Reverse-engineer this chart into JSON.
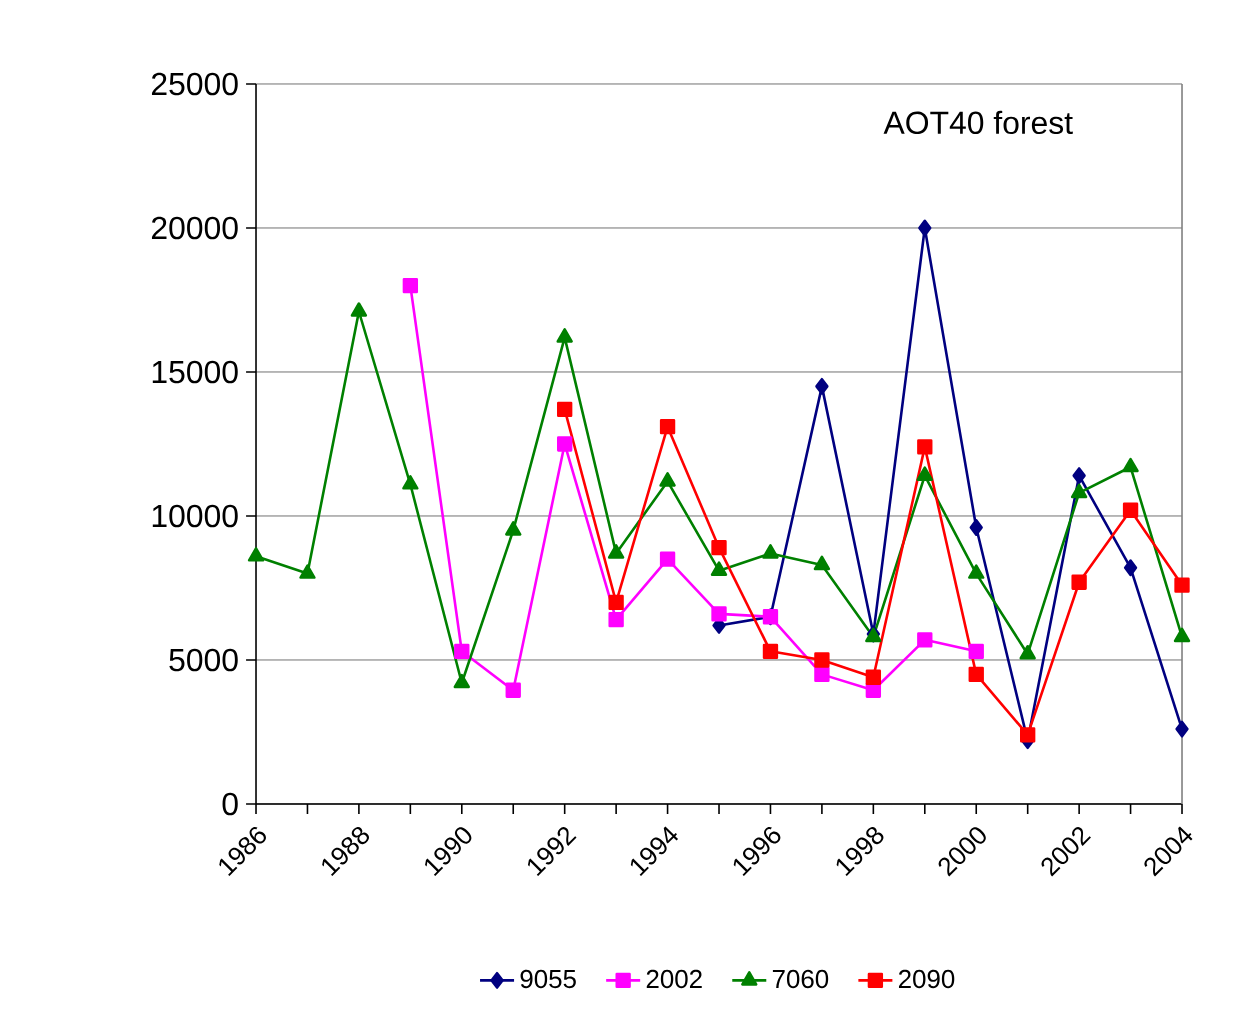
{
  "chart_data": {
    "type": "line",
    "title": "AOT40 forest",
    "x": [
      1986,
      1987,
      1988,
      1989,
      1990,
      1991,
      1992,
      1993,
      1994,
      1995,
      1996,
      1997,
      1998,
      1999,
      2000,
      2001,
      2002,
      2003,
      2004
    ],
    "xlim": [
      1986,
      2004
    ],
    "xticks": [
      1986,
      {
        "value": 1987,
        "label": null
      },
      1988,
      {
        "value": 1989,
        "label": null
      },
      1990,
      {
        "value": 1991,
        "label": null
      },
      1992,
      {
        "value": 1993,
        "label": null
      },
      1994,
      {
        "value": 1995,
        "label": null
      },
      1996,
      {
        "value": 1997,
        "label": null
      },
      1998,
      {
        "value": 1999,
        "label": null
      },
      2000,
      {
        "value": 2001,
        "label": null
      },
      2002,
      {
        "value": 2003,
        "label": null
      },
      2004
    ],
    "ylim": [
      0,
      25000
    ],
    "yticks": [
      0,
      5000,
      10000,
      15000,
      20000,
      25000
    ],
    "grid": "y",
    "legend": "bottom",
    "series": [
      {
        "name": "9055",
        "color": "#000080",
        "marker": "diamond",
        "values": [
          null,
          null,
          null,
          null,
          null,
          null,
          null,
          null,
          null,
          6200,
          6500,
          14500,
          5900,
          20000,
          9600,
          2200,
          11400,
          8200,
          2600
        ]
      },
      {
        "name": "2002",
        "color": "#ff00ff",
        "marker": "square",
        "values": [
          null,
          null,
          null,
          18000,
          5300,
          3950,
          12500,
          6400,
          8500,
          6600,
          6500,
          4500,
          3950,
          5700,
          5300,
          null,
          null,
          null,
          null
        ]
      },
      {
        "name": "7060",
        "color": "#008000",
        "marker": "triangle",
        "values": [
          8600,
          8000,
          17100,
          11100,
          4200,
          9500,
          16200,
          8700,
          11200,
          8100,
          8700,
          8300,
          5800,
          11400,
          8000,
          5200,
          10800,
          11700,
          5800
        ]
      },
      {
        "name": "2090",
        "color": "#ff0000",
        "marker": "square",
        "values": [
          null,
          null,
          null,
          null,
          null,
          null,
          13700,
          7000,
          13100,
          8900,
          5300,
          5000,
          4400,
          12400,
          4500,
          2400,
          7700,
          10200,
          7600
        ]
      }
    ]
  }
}
